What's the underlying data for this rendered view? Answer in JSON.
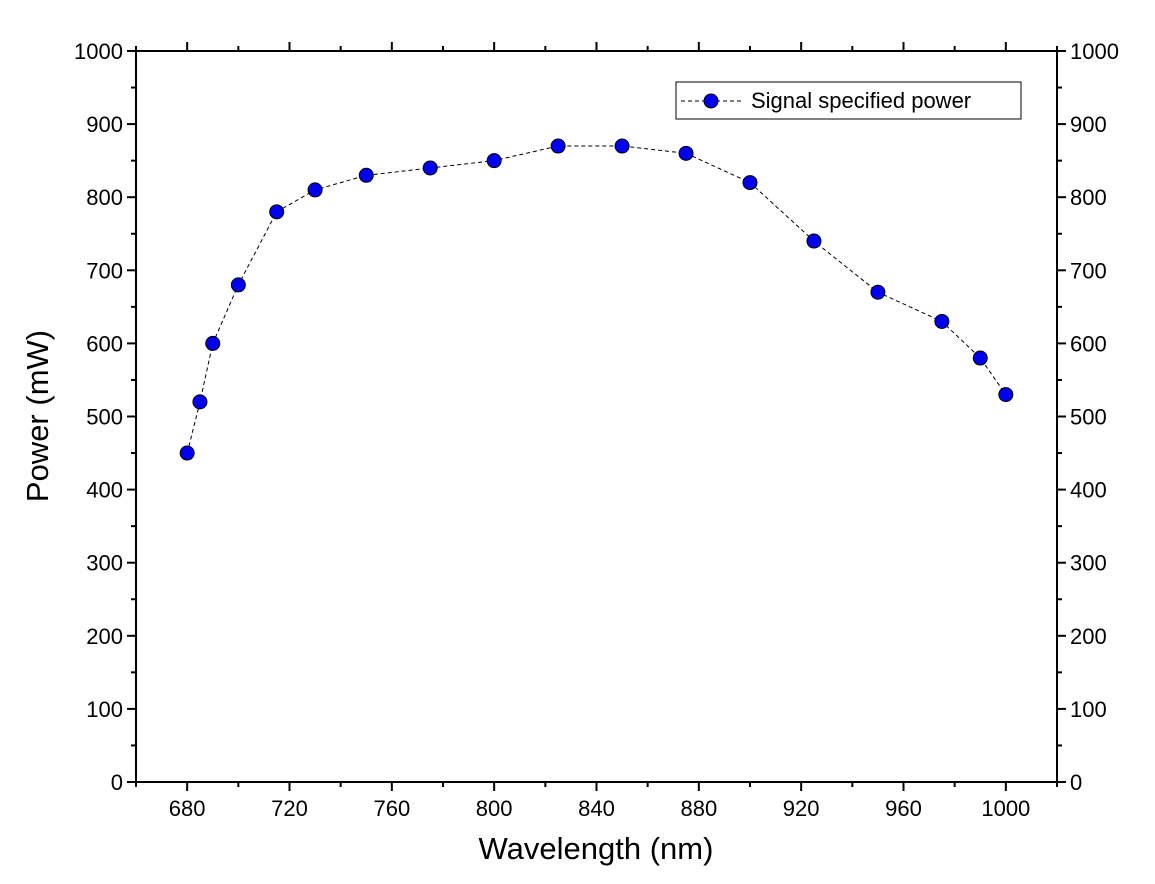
{
  "chart_data": {
    "type": "line",
    "title": "",
    "xlabel": "Wavelength (nm)",
    "ylabel": "Power (mW)",
    "xlim": [
      660,
      1020
    ],
    "ylim": [
      0,
      1000
    ],
    "xticks": [
      680,
      720,
      760,
      800,
      840,
      880,
      920,
      960,
      1000
    ],
    "yticks": [
      0,
      100,
      200,
      300,
      400,
      500,
      600,
      700,
      800,
      900,
      1000
    ],
    "right_yticks": true,
    "grid": false,
    "legend_position": "top-right",
    "series": [
      {
        "name": "Signal specified power",
        "color": "#0000ee",
        "line_style": "dashed",
        "marker": "circle",
        "points": [
          {
            "x": 680,
            "y": 450
          },
          {
            "x": 685,
            "y": 520
          },
          {
            "x": 690,
            "y": 600
          },
          {
            "x": 700,
            "y": 680
          },
          {
            "x": 715,
            "y": 780
          },
          {
            "x": 730,
            "y": 810
          },
          {
            "x": 750,
            "y": 830
          },
          {
            "x": 775,
            "y": 840
          },
          {
            "x": 800,
            "y": 850
          },
          {
            "x": 825,
            "y": 870
          },
          {
            "x": 850,
            "y": 870
          },
          {
            "x": 875,
            "y": 860
          },
          {
            "x": 900,
            "y": 820
          },
          {
            "x": 925,
            "y": 740
          },
          {
            "x": 950,
            "y": 670
          },
          {
            "x": 975,
            "y": 630
          },
          {
            "x": 990,
            "y": 580
          },
          {
            "x": 1000,
            "y": 530
          }
        ]
      }
    ]
  }
}
